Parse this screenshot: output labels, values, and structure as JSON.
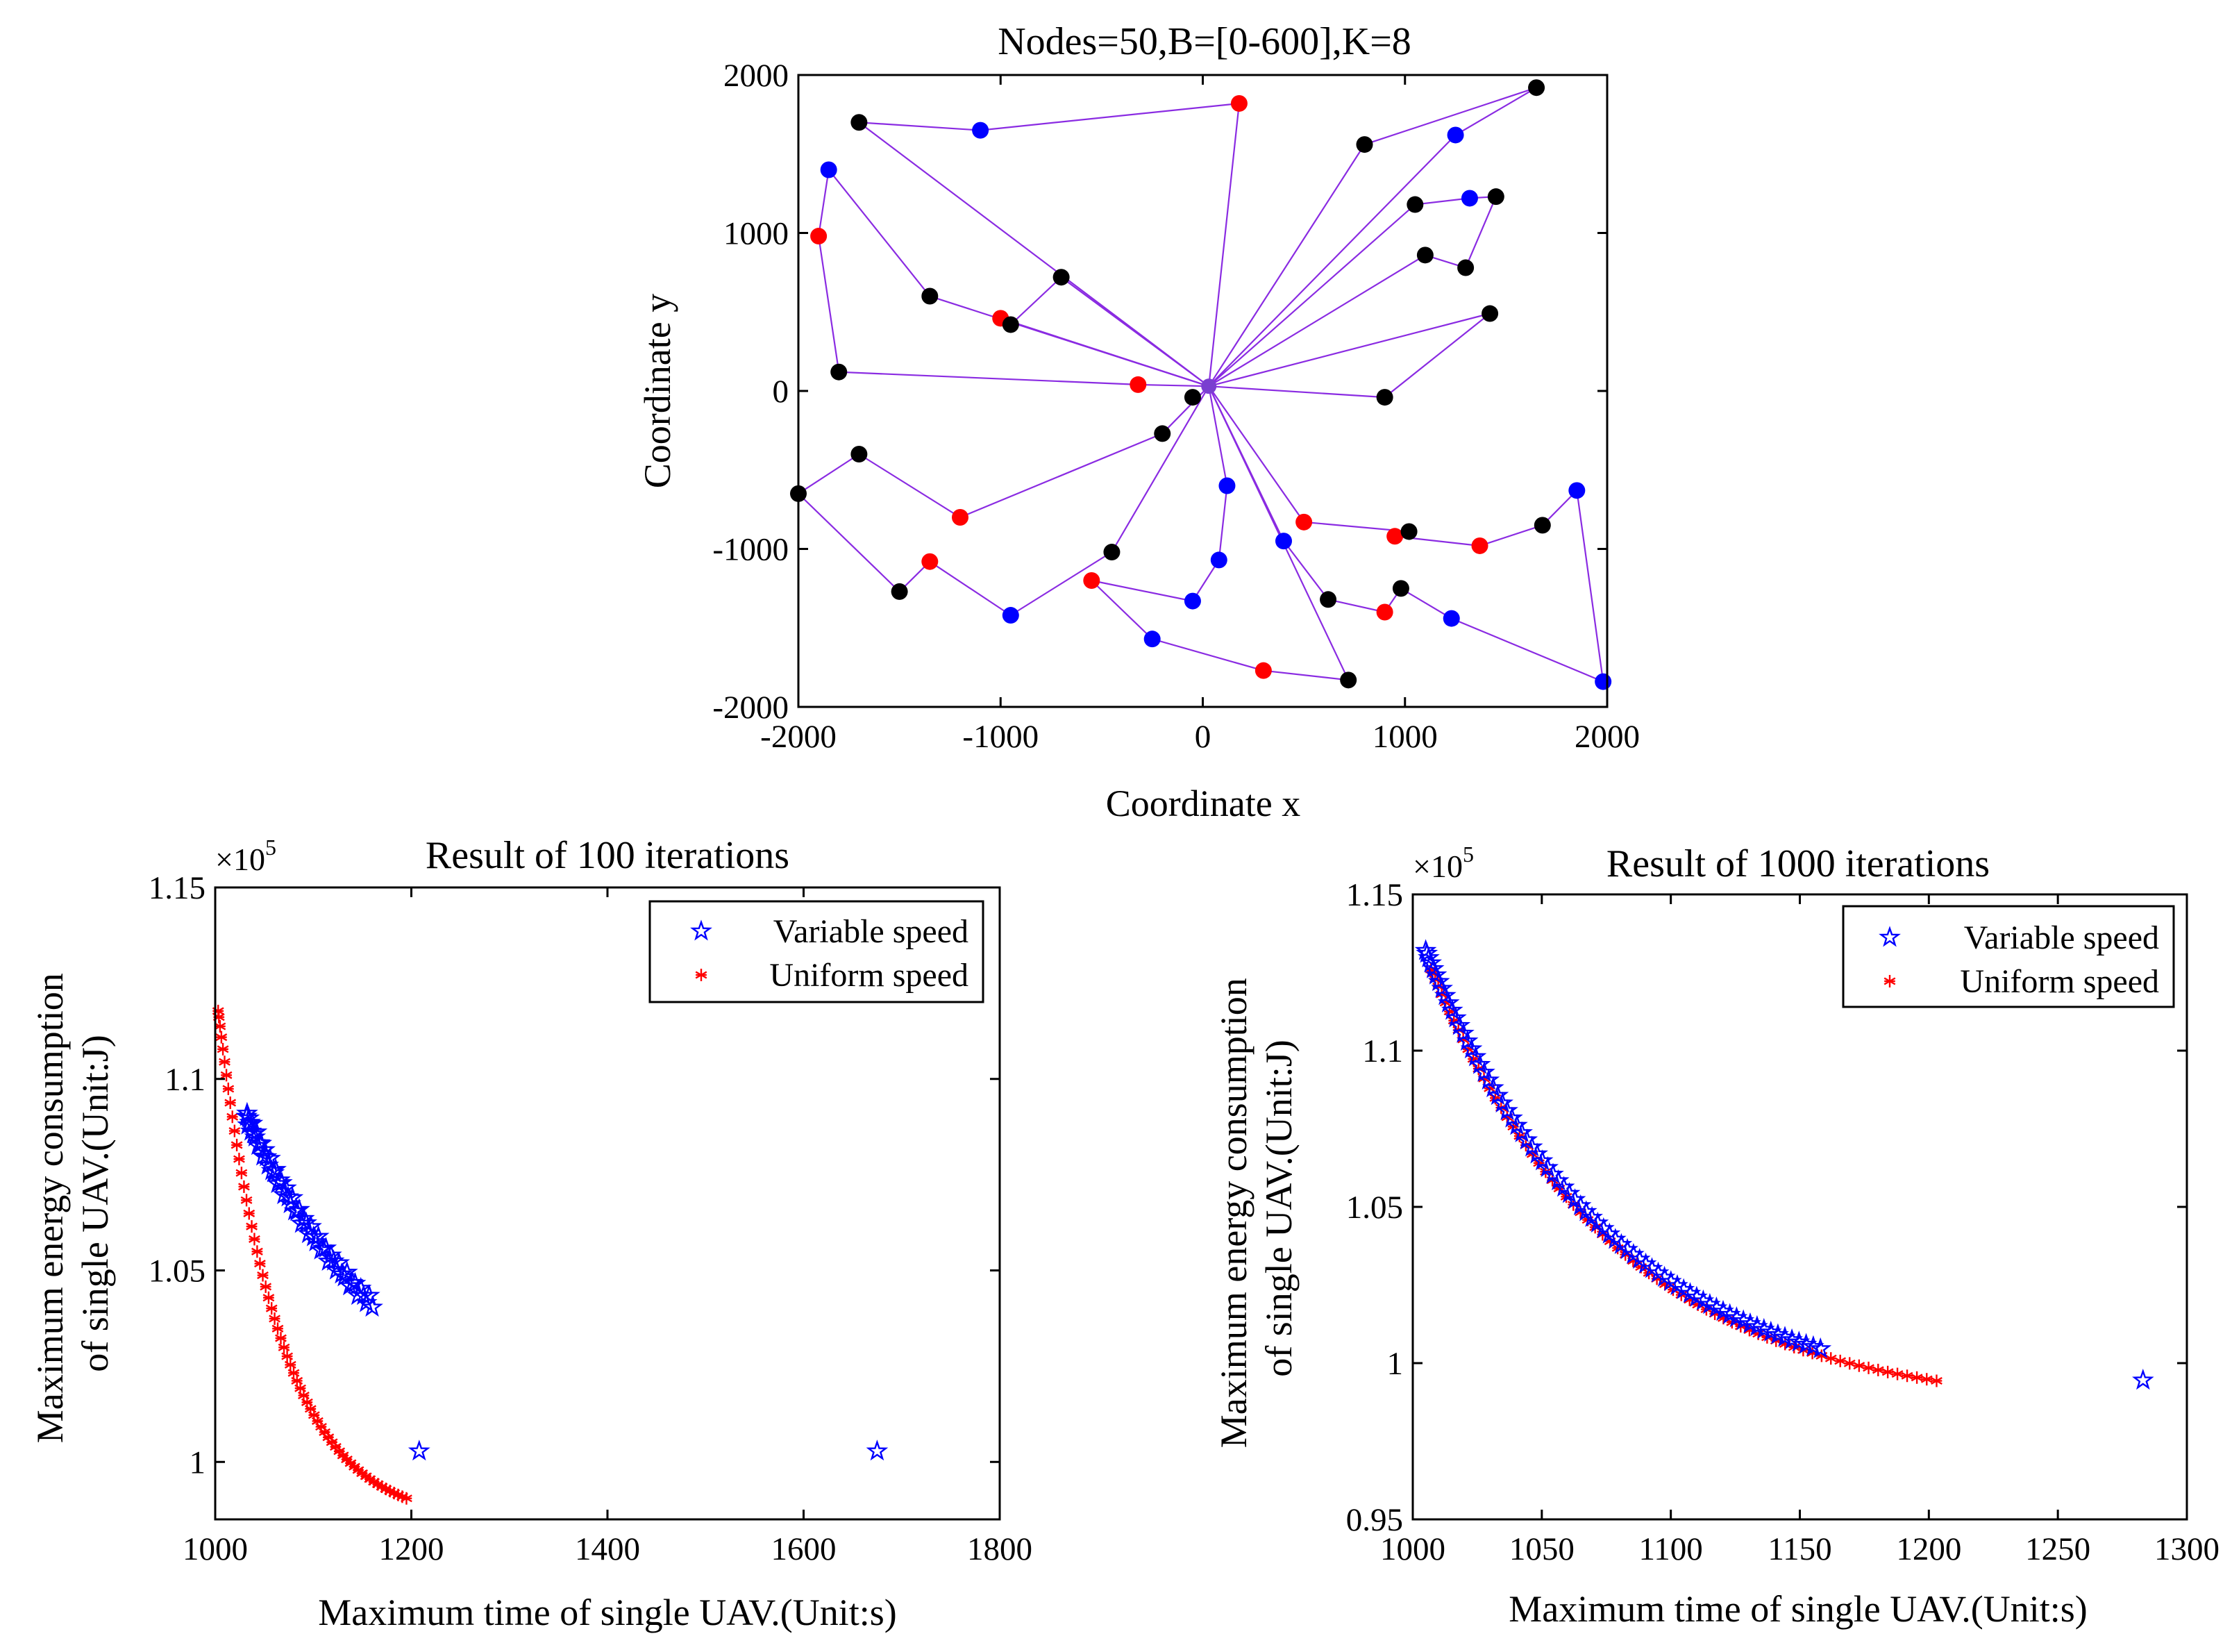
{
  "figure": {
    "top_title": "Nodes=50,B=[0-600],K=8",
    "bl_title": "Result of 100 iterations",
    "br_title": "Result of 1000 iterations",
    "top_xlabel": "Coordinate x",
    "top_ylabel": "Coordinate y",
    "bottom_xlabel": "Maximum time of single UAV.(Unit:s)",
    "bottom_ylabel_line1": "Maximum energy consumption",
    "bottom_ylabel_line2": "of single UAV.(Unit:J)",
    "exponent_base": "×10",
    "exponent_power": "5",
    "legend_variable": "Variable speed",
    "legend_uniform": "Uniform speed"
  },
  "colors": {
    "route": "#8a2be2",
    "black_node": "#000000",
    "blue_node": "#0000ff",
    "red_node": "#ff0000",
    "variable": "#0000ff",
    "uniform": "#ff0000"
  },
  "chart_data": [
    {
      "id": "top",
      "type": "scatter",
      "title": "Nodes=50,B=[0-600],K=8",
      "xlabel": "Coordinate x",
      "ylabel": "Coordinate y",
      "xlim": [
        -2000,
        2000
      ],
      "ylim": [
        -2000,
        2000
      ],
      "xticks": [
        -2000,
        -1000,
        0,
        1000,
        2000
      ],
      "yticks": [
        -2000,
        -1000,
        0,
        1000,
        2000
      ],
      "xtick_labels": [
        "-2000",
        "-1000",
        "0",
        "1000",
        "2000"
      ],
      "ytick_labels": [
        "-2000",
        "-1000",
        "0",
        "1000",
        "2000"
      ],
      "depot": [
        30,
        30
      ],
      "nodes": [
        {
          "p": [
            -1700,
            1700
          ],
          "c": "black"
        },
        {
          "p": [
            -1100,
            1650
          ],
          "c": "blue"
        },
        {
          "p": [
            180,
            1820
          ],
          "c": "red"
        },
        {
          "p": [
            -1850,
            1400
          ],
          "c": "blue"
        },
        {
          "p": [
            -1900,
            980
          ],
          "c": "red"
        },
        {
          "p": [
            -1800,
            120
          ],
          "c": "black"
        },
        {
          "p": [
            -1350,
            600
          ],
          "c": "black"
        },
        {
          "p": [
            -1000,
            460
          ],
          "c": "red"
        },
        {
          "p": [
            -950,
            420
          ],
          "c": "black"
        },
        {
          "p": [
            -700,
            720
          ],
          "c": "black"
        },
        {
          "p": [
            -320,
            40
          ],
          "c": "red"
        },
        {
          "p": [
            800,
            1560
          ],
          "c": "black"
        },
        {
          "p": [
            1250,
            1620
          ],
          "c": "blue"
        },
        {
          "p": [
            1650,
            1920
          ],
          "c": "black"
        },
        {
          "p": [
            1050,
            1180
          ],
          "c": "black"
        },
        {
          "p": [
            1320,
            1220
          ],
          "c": "blue"
        },
        {
          "p": [
            1450,
            1230
          ],
          "c": "black"
        },
        {
          "p": [
            1100,
            860
          ],
          "c": "black"
        },
        {
          "p": [
            1300,
            780
          ],
          "c": "black"
        },
        {
          "p": [
            1420,
            490
          ],
          "c": "black"
        },
        {
          "p": [
            900,
            -40
          ],
          "c": "black"
        },
        {
          "p": [
            -50,
            -40
          ],
          "c": "black"
        },
        {
          "p": [
            -200,
            -270
          ],
          "c": "black"
        },
        {
          "p": [
            -2000,
            -650
          ],
          "c": "black"
        },
        {
          "p": [
            -1700,
            -400
          ],
          "c": "black"
        },
        {
          "p": [
            -1200,
            -800
          ],
          "c": "red"
        },
        {
          "p": [
            -1500,
            -1270
          ],
          "c": "black"
        },
        {
          "p": [
            -1350,
            -1080
          ],
          "c": "red"
        },
        {
          "p": [
            -950,
            -1420
          ],
          "c": "blue"
        },
        {
          "p": [
            -450,
            -1020
          ],
          "c": "black"
        },
        {
          "p": [
            -550,
            -1200
          ],
          "c": "red"
        },
        {
          "p": [
            -250,
            -1570
          ],
          "c": "blue"
        },
        {
          "p": [
            300,
            -1770
          ],
          "c": "red"
        },
        {
          "p": [
            720,
            -1830
          ],
          "c": "black"
        },
        {
          "p": [
            120,
            -600
          ],
          "c": "blue"
        },
        {
          "p": [
            80,
            -1070
          ],
          "c": "blue"
        },
        {
          "p": [
            -50,
            -1330
          ],
          "c": "blue"
        },
        {
          "p": [
            400,
            -950
          ],
          "c": "blue"
        },
        {
          "p": [
            620,
            -1320
          ],
          "c": "black"
        },
        {
          "p": [
            900,
            -1400
          ],
          "c": "red"
        },
        {
          "p": [
            980,
            -1250
          ],
          "c": "black"
        },
        {
          "p": [
            1230,
            -1440
          ],
          "c": "blue"
        },
        {
          "p": [
            1980,
            -1840
          ],
          "c": "blue"
        },
        {
          "p": [
            500,
            -830
          ],
          "c": "red"
        },
        {
          "p": [
            950,
            -920
          ],
          "c": "red"
        },
        {
          "p": [
            1020,
            -890
          ],
          "c": "black"
        },
        {
          "p": [
            1370,
            -980
          ],
          "c": "red"
        },
        {
          "p": [
            1680,
            -850
          ],
          "c": "black"
        },
        {
          "p": [
            1850,
            -630
          ],
          "c": "blue"
        }
      ],
      "routes": [
        [
          [
            30,
            30
          ],
          [
            -1700,
            1700
          ],
          [
            -1100,
            1650
          ],
          [
            180,
            1820
          ],
          [
            30,
            30
          ]
        ],
        [
          [
            30,
            30
          ],
          [
            -1350,
            600
          ],
          [
            -1850,
            1400
          ],
          [
            -1900,
            980
          ],
          [
            -1800,
            120
          ],
          [
            -320,
            40
          ],
          [
            30,
            30
          ]
        ],
        [
          [
            30,
            30
          ],
          [
            -1000,
            460
          ],
          [
            -950,
            420
          ],
          [
            -700,
            720
          ],
          [
            30,
            30
          ]
        ],
        [
          [
            30,
            30
          ],
          [
            800,
            1560
          ],
          [
            1650,
            1920
          ],
          [
            1250,
            1620
          ],
          [
            30,
            30
          ]
        ],
        [
          [
            30,
            30
          ],
          [
            1050,
            1180
          ],
          [
            1320,
            1220
          ],
          [
            1450,
            1230
          ],
          [
            1300,
            780
          ],
          [
            1100,
            860
          ],
          [
            30,
            30
          ]
        ],
        [
          [
            30,
            30
          ],
          [
            1420,
            490
          ],
          [
            900,
            -40
          ],
          [
            30,
            30
          ]
        ],
        [
          [
            30,
            30
          ],
          [
            -200,
            -270
          ],
          [
            -1200,
            -800
          ],
          [
            -1700,
            -400
          ],
          [
            -2000,
            -650
          ],
          [
            -1500,
            -1270
          ],
          [
            -1350,
            -1080
          ],
          [
            -950,
            -1420
          ],
          [
            -450,
            -1020
          ],
          [
            30,
            30
          ]
        ],
        [
          [
            30,
            30
          ],
          [
            120,
            -600
          ],
          [
            80,
            -1070
          ],
          [
            -50,
            -1330
          ],
          [
            -550,
            -1200
          ],
          [
            -250,
            -1570
          ],
          [
            300,
            -1770
          ],
          [
            720,
            -1830
          ],
          [
            30,
            30
          ]
        ],
        [
          [
            30,
            30
          ],
          [
            400,
            -950
          ],
          [
            620,
            -1320
          ],
          [
            900,
            -1400
          ],
          [
            980,
            -1250
          ],
          [
            1230,
            -1440
          ],
          [
            1980,
            -1840
          ],
          [
            1850,
            -630
          ],
          [
            1680,
            -850
          ],
          [
            1370,
            -980
          ],
          [
            950,
            -920
          ],
          [
            1020,
            -890
          ],
          [
            500,
            -830
          ],
          [
            30,
            30
          ]
        ]
      ]
    },
    {
      "id": "bl",
      "type": "scatter",
      "title": "Result of 100 iterations",
      "xlabel": "Maximum time of single UAV.(Unit:s)",
      "ylabel": "Maximum energy consumption of single UAV.(Unit:J)",
      "xlim": [
        1000,
        1800
      ],
      "ylim": [
        0.985,
        1.15
      ],
      "xticks": [
        1000,
        1200,
        1400,
        1600,
        1800
      ],
      "yticks": [
        1.0,
        1.05,
        1.1,
        1.15
      ],
      "xtick_labels": [
        "1000",
        "1200",
        "1400",
        "1600",
        "1800"
      ],
      "ytick_labels": [
        "1",
        "1.05",
        "1.1",
        "1.15"
      ],
      "yscale_note": "x10^5",
      "legend": [
        "Variable speed",
        "Uniform speed"
      ],
      "series": [
        {
          "name": "Variable speed",
          "marker": "star",
          "curve": {
            "x0": 1010,
            "k": 0.0065,
            "a": 0.1,
            "c": 1.0035
          },
          "x_from": 1032,
          "x_to": 1160,
          "count": 60,
          "jitter": 0.0015,
          "extra": [
            [
              1208,
              1.0028
            ],
            [
              1675,
              1.0028
            ]
          ]
        },
        {
          "name": "Uniform speed",
          "marker": "asterisk",
          "curve": {
            "x0": 1000,
            "k": 0.016,
            "a": 0.14,
            "c": 0.9843
          },
          "x_from": 1003,
          "x_to": 1195,
          "count": 62,
          "jitter": 0,
          "extra": []
        }
      ]
    },
    {
      "id": "br",
      "type": "scatter",
      "title": "Result of 1000 iterations",
      "xlabel": "Maximum time of single UAV.(Unit:s)",
      "ylabel": "Maximum energy consumption of single UAV.(Unit:J)",
      "xlim": [
        1000,
        1300
      ],
      "ylim": [
        0.95,
        1.15
      ],
      "xticks": [
        1000,
        1050,
        1100,
        1150,
        1200,
        1250,
        1300
      ],
      "yticks": [
        0.95,
        1.0,
        1.05,
        1.1,
        1.15
      ],
      "xtick_labels": [
        "1000",
        "1050",
        "1100",
        "1150",
        "1200",
        "1250",
        "1300"
      ],
      "ytick_labels": [
        "0.95",
        "1",
        "1.05",
        "1.1",
        "1.15"
      ],
      "yscale_note": "x10^5",
      "legend": [
        "Variable speed",
        "Uniform speed"
      ],
      "series": [
        {
          "name": "Variable speed",
          "marker": "star",
          "curve": {
            "x0": 1005,
            "k": 0.0138,
            "a": 0.145,
            "c": 0.987
          },
          "x_from": 1005,
          "x_to": 1158,
          "count": 75,
          "jitter": 0,
          "extra": [
            [
              1283,
              0.9945
            ]
          ]
        },
        {
          "name": "Uniform speed",
          "marker": "asterisk",
          "curve": {
            "x0": 1005,
            "k": 0.0138,
            "a": 0.145,
            "c": 0.9849
          },
          "x_from": 1007,
          "x_to": 1203,
          "count": 70,
          "jitter": 0,
          "extra": []
        }
      ]
    }
  ]
}
